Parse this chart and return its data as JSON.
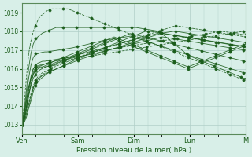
{
  "title": "",
  "xlabel": "Pression niveau de la mer( hPa )",
  "ylabel": "",
  "ylim": [
    1012.5,
    1019.5
  ],
  "yticks": [
    1013,
    1014,
    1015,
    1016,
    1017,
    1018,
    1019
  ],
  "x_day_labels": [
    "Ven",
    "Sam",
    "Dim",
    "Lun",
    "M"
  ],
  "x_day_positions": [
    0,
    24,
    48,
    72,
    96
  ],
  "bg_color": "#d8efe8",
  "grid_color": "#b0cfc8",
  "line_color": "#1a5c1a",
  "total_hours": 96,
  "series": [
    [
      1013.0,
      1013.2,
      1013.5,
      1014.0,
      1014.5,
      1015.0,
      1015.3,
      1015.5,
      1015.6,
      1015.7,
      1015.8,
      1015.9,
      1016.0,
      1016.1,
      1016.2,
      1016.3,
      1016.35,
      1016.4,
      1016.45,
      1016.5,
      1016.55,
      1016.6,
      1016.65,
      1016.7,
      1016.75,
      1016.8,
      1016.82,
      1016.84,
      1016.86,
      1016.88,
      1016.9,
      1016.92,
      1016.94,
      1016.96,
      1016.98,
      1017.0,
      1017.02,
      1017.04,
      1017.06,
      1017.08,
      1017.1,
      1017.12,
      1017.14,
      1017.16,
      1017.18,
      1017.2,
      1017.22,
      1017.24,
      1017.26,
      1017.28,
      1017.3,
      1017.32,
      1017.34,
      1017.36,
      1017.38,
      1017.4,
      1017.42,
      1017.44,
      1017.46,
      1017.48,
      1017.5,
      1017.52,
      1017.54,
      1017.56,
      1017.58,
      1017.6,
      1017.62,
      1017.64,
      1017.66,
      1017.68,
      1017.7,
      1017.72,
      1017.74,
      1017.76,
      1017.78,
      1017.8,
      1017.82,
      1017.84,
      1017.86,
      1017.88,
      1017.9,
      1017.92,
      1017.94,
      1017.96,
      1017.98,
      1018.0,
      1017.98,
      1017.96,
      1017.94,
      1017.92,
      1017.9,
      1017.88,
      1017.86,
      1017.84,
      1017.82,
      1017.8
    ],
    [
      1013.0,
      1013.3,
      1013.7,
      1014.2,
      1014.7,
      1015.1,
      1015.4,
      1015.6,
      1015.7,
      1015.8,
      1015.85,
      1015.9,
      1015.95,
      1016.0,
      1016.1,
      1016.15,
      1016.2,
      1016.25,
      1016.3,
      1016.35,
      1016.4,
      1016.45,
      1016.5,
      1016.55,
      1016.6,
      1016.65,
      1016.7,
      1016.74,
      1016.78,
      1016.82,
      1016.86,
      1016.9,
      1016.94,
      1016.98,
      1017.02,
      1017.06,
      1017.1,
      1017.14,
      1017.18,
      1017.22,
      1017.26,
      1017.3,
      1017.34,
      1017.38,
      1017.42,
      1017.46,
      1017.5,
      1017.54,
      1017.58,
      1017.62,
      1017.66,
      1017.7,
      1017.74,
      1017.78,
      1017.82,
      1017.86,
      1017.9,
      1017.94,
      1017.98,
      1018.02,
      1018.06,
      1018.1,
      1018.14,
      1018.18,
      1018.22,
      1018.26,
      1018.3,
      1018.28,
      1018.26,
      1018.24,
      1018.22,
      1018.2,
      1018.18,
      1018.16,
      1018.14,
      1018.12,
      1018.1,
      1018.08,
      1018.06,
      1018.04,
      1018.02,
      1018.0,
      1017.98,
      1017.96,
      1017.94,
      1017.92,
      1017.9,
      1017.88,
      1017.86,
      1017.84,
      1017.82,
      1017.8,
      1017.78,
      1017.76,
      1017.74,
      1017.72,
      1017.7
    ],
    [
      1013.0,
      1013.1,
      1013.4,
      1013.9,
      1014.3,
      1014.8,
      1015.1,
      1015.3,
      1015.45,
      1015.55,
      1015.65,
      1015.75,
      1015.82,
      1015.88,
      1015.94,
      1016.0,
      1016.05,
      1016.1,
      1016.15,
      1016.2,
      1016.25,
      1016.3,
      1016.35,
      1016.4,
      1016.45,
      1016.5,
      1016.54,
      1016.58,
      1016.62,
      1016.66,
      1016.7,
      1016.74,
      1016.78,
      1016.82,
      1016.86,
      1016.9,
      1016.94,
      1016.98,
      1017.02,
      1017.06,
      1017.1,
      1017.14,
      1017.18,
      1017.22,
      1017.26,
      1017.3,
      1017.34,
      1017.38,
      1017.42,
      1017.46,
      1017.5,
      1017.54,
      1017.58,
      1017.62,
      1017.66,
      1017.7,
      1017.74,
      1017.78,
      1017.82,
      1017.86,
      1017.9,
      1017.92,
      1017.94,
      1017.96,
      1017.98,
      1018.0,
      1018.0,
      1017.98,
      1017.96,
      1017.94,
      1017.92,
      1017.9,
      1017.88,
      1017.86,
      1017.84,
      1017.82,
      1017.8,
      1017.78,
      1017.76,
      1017.74,
      1017.72,
      1017.7,
      1017.68,
      1017.66,
      1017.64,
      1017.62,
      1017.6,
      1017.58,
      1017.56,
      1017.54,
      1017.52,
      1017.5,
      1017.48,
      1017.46,
      1017.44,
      1017.42,
      1017.4
    ],
    [
      1013.0,
      1013.15,
      1013.6,
      1014.1,
      1014.6,
      1015.0,
      1015.25,
      1015.45,
      1015.55,
      1015.65,
      1015.72,
      1015.78,
      1015.85,
      1015.9,
      1015.95,
      1016.0,
      1016.06,
      1016.12,
      1016.18,
      1016.24,
      1016.3,
      1016.36,
      1016.42,
      1016.48,
      1016.54,
      1016.6,
      1016.65,
      1016.7,
      1016.75,
      1016.8,
      1016.85,
      1016.9,
      1016.95,
      1017.0,
      1017.05,
      1017.1,
      1017.15,
      1017.2,
      1017.25,
      1017.3,
      1017.35,
      1017.4,
      1017.45,
      1017.5,
      1017.55,
      1017.6,
      1017.65,
      1017.7,
      1017.75,
      1017.8,
      1017.85,
      1017.9,
      1017.95,
      1018.0,
      1018.0,
      1018.0,
      1017.98,
      1017.96,
      1017.94,
      1017.92,
      1017.9,
      1017.88,
      1017.86,
      1017.84,
      1017.82,
      1017.8,
      1017.78,
      1017.76,
      1017.74,
      1017.72,
      1017.7,
      1017.68,
      1017.66,
      1017.64,
      1017.62,
      1017.6,
      1017.58,
      1017.56,
      1017.54,
      1017.52,
      1017.5,
      1017.48,
      1017.46,
      1017.44,
      1017.42,
      1017.4,
      1017.38,
      1017.36,
      1017.34,
      1017.32,
      1017.3,
      1017.28,
      1017.26,
      1017.24,
      1017.22,
      1017.2,
      1017.18
    ],
    [
      1013.0,
      1013.4,
      1014.0,
      1014.6,
      1015.1,
      1015.5,
      1015.7,
      1015.85,
      1015.95,
      1016.02,
      1016.08,
      1016.12,
      1016.16,
      1016.2,
      1016.24,
      1016.28,
      1016.33,
      1016.38,
      1016.43,
      1016.48,
      1016.53,
      1016.58,
      1016.63,
      1016.68,
      1016.73,
      1016.78,
      1016.83,
      1016.88,
      1016.93,
      1016.98,
      1017.03,
      1017.08,
      1017.13,
      1017.18,
      1017.23,
      1017.28,
      1017.33,
      1017.38,
      1017.43,
      1017.48,
      1017.53,
      1017.58,
      1017.63,
      1017.68,
      1017.73,
      1017.78,
      1017.83,
      1017.88,
      1017.85,
      1017.82,
      1017.79,
      1017.76,
      1017.73,
      1017.7,
      1017.67,
      1017.64,
      1017.61,
      1017.58,
      1017.55,
      1017.52,
      1017.49,
      1017.46,
      1017.43,
      1017.4,
      1017.37,
      1017.34,
      1017.31,
      1017.28,
      1017.25,
      1017.22,
      1017.19,
      1017.16,
      1017.13,
      1017.1,
      1017.07,
      1017.04,
      1017.01,
      1016.98,
      1016.95,
      1016.92,
      1016.89,
      1016.86,
      1016.83,
      1016.8,
      1016.77,
      1016.74,
      1016.71,
      1016.68,
      1016.65,
      1016.62,
      1016.59,
      1016.56,
      1016.53,
      1016.5,
      1016.47,
      1016.44,
      1016.41,
      1016.38
    ],
    [
      1013.0,
      1013.5,
      1014.2,
      1015.0,
      1015.5,
      1015.8,
      1016.0,
      1016.05,
      1016.1,
      1016.1,
      1016.15,
      1016.2,
      1016.2,
      1016.25,
      1016.3,
      1016.35,
      1016.4,
      1016.45,
      1016.5,
      1016.55,
      1016.6,
      1016.65,
      1016.7,
      1016.75,
      1016.8,
      1016.85,
      1016.9,
      1016.95,
      1017.0,
      1017.05,
      1017.1,
      1017.15,
      1017.2,
      1017.25,
      1017.3,
      1017.35,
      1017.4,
      1017.45,
      1017.5,
      1017.55,
      1017.6,
      1017.55,
      1017.5,
      1017.45,
      1017.4,
      1017.35,
      1017.3,
      1017.25,
      1017.2,
      1017.15,
      1017.1,
      1017.05,
      1017.0,
      1016.95,
      1016.9,
      1016.85,
      1016.8,
      1016.75,
      1016.7,
      1016.65,
      1016.6,
      1016.55,
      1016.5,
      1016.45,
      1016.4,
      1016.35,
      1016.3,
      1016.25,
      1016.2,
      1016.15,
      1016.1,
      1016.05,
      1016.0,
      1016.05,
      1016.1,
      1016.15,
      1016.2,
      1016.25,
      1016.3,
      1016.35,
      1016.4,
      1016.45,
      1016.5,
      1016.55,
      1016.6,
      1016.65,
      1016.7,
      1016.75,
      1016.8,
      1016.85,
      1016.9,
      1016.95,
      1017.0,
      1017.05,
      1017.1,
      1017.15,
      1017.2,
      1017.2
    ],
    [
      1013.0,
      1013.6,
      1014.3,
      1015.0,
      1015.6,
      1016.0,
      1016.1,
      1016.15,
      1016.2,
      1016.2,
      1016.25,
      1016.3,
      1016.35,
      1016.35,
      1016.4,
      1016.45,
      1016.5,
      1016.55,
      1016.6,
      1016.65,
      1016.7,
      1016.75,
      1016.8,
      1016.85,
      1016.9,
      1016.95,
      1017.0,
      1017.05,
      1017.1,
      1017.15,
      1017.2,
      1017.25,
      1017.3,
      1017.35,
      1017.4,
      1017.45,
      1017.5,
      1017.55,
      1017.6,
      1017.65,
      1017.7,
      1017.65,
      1017.6,
      1017.55,
      1017.5,
      1017.45,
      1017.4,
      1017.35,
      1017.3,
      1017.25,
      1017.2,
      1017.15,
      1017.1,
      1017.05,
      1017.0,
      1016.95,
      1016.9,
      1016.85,
      1016.8,
      1016.75,
      1016.7,
      1016.65,
      1016.6,
      1016.55,
      1016.5,
      1016.45,
      1016.4,
      1016.35,
      1016.3,
      1016.25,
      1016.2,
      1016.15,
      1016.1,
      1016.15,
      1016.2,
      1016.25,
      1016.3,
      1016.35,
      1016.4,
      1016.45,
      1016.5,
      1016.55,
      1016.6,
      1016.65,
      1016.7,
      1016.75,
      1016.8,
      1016.85,
      1016.9,
      1016.95,
      1017.0,
      1017.05,
      1017.1,
      1017.15,
      1017.2,
      1017.25,
      1017.3,
      1017.3
    ],
    [
      1013.0,
      1013.2,
      1013.8,
      1014.5,
      1015.2,
      1015.7,
      1016.0,
      1016.1,
      1016.15,
      1016.2,
      1016.25,
      1016.3,
      1016.3,
      1016.35,
      1016.4,
      1016.42,
      1016.44,
      1016.46,
      1016.48,
      1016.5,
      1016.52,
      1016.55,
      1016.58,
      1016.6,
      1016.62,
      1016.65,
      1016.68,
      1016.7,
      1016.72,
      1016.75,
      1016.78,
      1016.8,
      1016.83,
      1016.86,
      1016.89,
      1016.92,
      1016.95,
      1016.98,
      1017.01,
      1017.04,
      1017.07,
      1017.1,
      1017.13,
      1017.16,
      1017.19,
      1017.22,
      1017.25,
      1017.28,
      1017.31,
      1017.34,
      1017.37,
      1017.4,
      1017.43,
      1017.46,
      1017.49,
      1017.52,
      1017.55,
      1017.58,
      1017.61,
      1017.64,
      1017.67,
      1017.7,
      1017.68,
      1017.66,
      1017.64,
      1017.62,
      1017.6,
      1017.58,
      1017.56,
      1017.54,
      1017.52,
      1017.5,
      1017.48,
      1017.46,
      1017.44,
      1017.42,
      1017.4,
      1017.38,
      1017.36,
      1017.34,
      1017.32,
      1017.3,
      1017.28,
      1017.26,
      1017.24,
      1017.22,
      1017.2,
      1017.18,
      1017.16,
      1017.14,
      1017.12,
      1017.1,
      1017.08,
      1017.06,
      1017.04,
      1017.02,
      1017.0,
      1017.0
    ],
    [
      1013.0,
      1013.25,
      1013.9,
      1014.8,
      1015.5,
      1016.0,
      1016.2,
      1016.3,
      1016.35,
      1016.4,
      1016.4,
      1016.42,
      1016.44,
      1016.46,
      1016.48,
      1016.5,
      1016.52,
      1016.54,
      1016.56,
      1016.58,
      1016.6,
      1016.63,
      1016.66,
      1016.7,
      1016.73,
      1016.76,
      1016.8,
      1016.83,
      1016.86,
      1016.9,
      1016.93,
      1016.96,
      1017.0,
      1017.03,
      1017.06,
      1017.1,
      1017.13,
      1017.16,
      1017.2,
      1017.23,
      1017.26,
      1017.3,
      1017.33,
      1017.36,
      1017.4,
      1017.43,
      1017.46,
      1017.5,
      1017.53,
      1017.56,
      1017.6,
      1017.63,
      1017.66,
      1017.7,
      1017.73,
      1017.76,
      1017.8,
      1017.83,
      1017.86,
      1017.9,
      1017.9,
      1017.88,
      1017.86,
      1017.84,
      1017.82,
      1017.8,
      1017.78,
      1017.76,
      1017.74,
      1017.72,
      1017.7,
      1017.68,
      1017.66,
      1017.64,
      1017.62,
      1017.6,
      1017.58,
      1017.56,
      1017.54,
      1017.52,
      1017.5,
      1017.48,
      1017.46,
      1017.44,
      1017.42,
      1017.4,
      1017.38,
      1017.36,
      1017.34,
      1017.32,
      1017.3,
      1017.28,
      1017.26,
      1017.24,
      1017.22,
      1017.2,
      1017.18,
      1017.18
    ],
    [
      1013.0,
      1013.5,
      1014.5,
      1015.5,
      1016.2,
      1016.6,
      1016.8,
      1016.8,
      1016.85,
      1016.88,
      1016.9,
      1016.9,
      1016.92,
      1016.94,
      1016.96,
      1016.98,
      1017.0,
      1017.02,
      1017.04,
      1017.06,
      1017.08,
      1017.1,
      1017.12,
      1017.15,
      1017.18,
      1017.2,
      1017.23,
      1017.26,
      1017.29,
      1017.32,
      1017.35,
      1017.38,
      1017.41,
      1017.44,
      1017.47,
      1017.5,
      1017.52,
      1017.54,
      1017.56,
      1017.58,
      1017.6,
      1017.62,
      1017.64,
      1017.66,
      1017.68,
      1017.7,
      1017.72,
      1017.74,
      1017.7,
      1017.66,
      1017.62,
      1017.58,
      1017.54,
      1017.5,
      1017.46,
      1017.42,
      1017.38,
      1017.34,
      1017.3,
      1017.26,
      1017.22,
      1017.18,
      1017.14,
      1017.1,
      1017.06,
      1017.02,
      1016.98,
      1016.94,
      1016.9,
      1016.86,
      1016.82,
      1016.78,
      1016.74,
      1016.7,
      1016.66,
      1016.62,
      1016.58,
      1016.54,
      1016.5,
      1016.46,
      1016.42,
      1016.38,
      1016.34,
      1016.3,
      1016.26,
      1016.22,
      1016.18,
      1016.14,
      1016.1,
      1016.06,
      1016.02,
      1015.98,
      1015.94,
      1015.9,
      1015.86,
      1015.82,
      1015.78,
      1015.78
    ],
    [
      1013.0,
      1013.7,
      1014.8,
      1016.0,
      1016.8,
      1017.3,
      1017.6,
      1017.7,
      1017.8,
      1017.9,
      1017.95,
      1018.0,
      1018.05,
      1018.1,
      1018.15,
      1018.2,
      1018.2,
      1018.2,
      1018.2,
      1018.2,
      1018.2,
      1018.2,
      1018.2,
      1018.2,
      1018.2,
      1018.2,
      1018.2,
      1018.2,
      1018.2,
      1018.2,
      1018.2,
      1018.2,
      1018.2,
      1018.2,
      1018.2,
      1018.2,
      1018.2,
      1018.2,
      1018.2,
      1018.2,
      1018.2,
      1018.2,
      1018.2,
      1018.2,
      1018.2,
      1018.2,
      1018.2,
      1018.2,
      1018.2,
      1018.2,
      1018.2,
      1018.18,
      1018.16,
      1018.14,
      1018.12,
      1018.1,
      1018.08,
      1018.06,
      1018.04,
      1018.02,
      1018.0,
      1017.9,
      1017.8,
      1017.7,
      1017.6,
      1017.5,
      1017.4,
      1017.3,
      1017.2,
      1017.1,
      1017.0,
      1016.9,
      1016.8,
      1016.7,
      1016.65,
      1016.6,
      1016.55,
      1016.5,
      1016.45,
      1016.4,
      1016.35,
      1016.3,
      1016.25,
      1016.2,
      1016.15,
      1016.1,
      1016.05,
      1016.0,
      1015.95,
      1015.9,
      1015.85,
      1015.8,
      1015.75,
      1015.7,
      1015.65,
      1015.6,
      1015.55,
      1015.5,
      1015.5
    ],
    [
      1013.0,
      1014.0,
      1015.5,
      1016.8,
      1017.5,
      1018.0,
      1018.3,
      1018.6,
      1018.8,
      1018.9,
      1019.0,
      1019.1,
      1019.15,
      1019.2,
      1019.2,
      1019.2,
      1019.2,
      1019.2,
      1019.2,
      1019.2,
      1019.2,
      1019.15,
      1019.1,
      1019.05,
      1019.0,
      1018.95,
      1018.9,
      1018.85,
      1018.8,
      1018.75,
      1018.7,
      1018.65,
      1018.6,
      1018.55,
      1018.5,
      1018.45,
      1018.4,
      1018.35,
      1018.3,
      1018.25,
      1018.2,
      1018.15,
      1018.1,
      1018.05,
      1018.0,
      1017.95,
      1017.9,
      1017.85,
      1017.8,
      1017.75,
      1017.7,
      1017.65,
      1017.6,
      1017.55,
      1017.5,
      1017.45,
      1017.4,
      1017.35,
      1017.3,
      1017.25,
      1017.2,
      1017.15,
      1017.1,
      1017.05,
      1017.0,
      1016.95,
      1016.9,
      1016.85,
      1016.8,
      1016.75,
      1016.7,
      1016.65,
      1016.6,
      1016.55,
      1016.5,
      1016.45,
      1016.4,
      1016.35,
      1016.3,
      1016.25,
      1016.2,
      1016.15,
      1016.1,
      1016.05,
      1016.0,
      1015.95,
      1015.9,
      1015.85,
      1015.8,
      1015.75,
      1015.7,
      1015.65,
      1015.6,
      1015.55,
      1015.5,
      1015.45,
      1015.4,
      1015.4
    ],
    [
      1013.0,
      1013.3,
      1013.9,
      1014.7,
      1015.3,
      1015.7,
      1015.9,
      1016.0,
      1016.05,
      1016.08,
      1016.1,
      1016.12,
      1016.14,
      1016.16,
      1016.18,
      1016.2,
      1016.25,
      1016.3,
      1016.35,
      1016.4,
      1016.45,
      1016.5,
      1016.52,
      1016.54,
      1016.56,
      1016.58,
      1016.6,
      1016.62,
      1016.64,
      1016.66,
      1016.68,
      1016.7,
      1016.72,
      1016.74,
      1016.76,
      1016.78,
      1016.8,
      1016.82,
      1016.84,
      1016.86,
      1016.88,
      1016.9,
      1016.92,
      1016.94,
      1016.96,
      1016.98,
      1017.0,
      1017.02,
      1017.04,
      1017.06,
      1017.08,
      1017.1,
      1017.12,
      1017.14,
      1017.16,
      1017.18,
      1017.2,
      1017.22,
      1017.24,
      1017.26,
      1017.28,
      1017.3,
      1017.32,
      1017.34,
      1017.36,
      1017.38,
      1017.4,
      1017.42,
      1017.44,
      1017.46,
      1017.48,
      1017.5,
      1017.52,
      1017.54,
      1017.56,
      1017.58,
      1017.6,
      1017.62,
      1017.64,
      1017.66,
      1017.68,
      1017.7,
      1017.72,
      1017.74,
      1017.76,
      1017.78,
      1017.8,
      1017.82,
      1017.84,
      1017.86,
      1017.88,
      1017.9,
      1017.92,
      1017.94,
      1017.96,
      1017.98,
      1018.0,
      1017.8
    ]
  ],
  "marker_styles": [
    {
      "ls": "--",
      "marker": "D"
    },
    {
      "ls": "--",
      "marker": "D"
    },
    {
      "ls": "-",
      "marker": "D"
    },
    {
      "ls": "-",
      "marker": "D"
    },
    {
      "ls": "-",
      "marker": "D"
    },
    {
      "ls": "-",
      "marker": "D"
    },
    {
      "ls": "-",
      "marker": "D"
    },
    {
      "ls": "-",
      "marker": "D"
    },
    {
      "ls": "-",
      "marker": "D"
    },
    {
      "ls": "-",
      "marker": "D"
    },
    {
      "ls": "-",
      "marker": "D"
    },
    {
      "ls": "--",
      "marker": "D"
    },
    {
      "ls": "--",
      "marker": "D"
    },
    {
      "ls": "-",
      "marker": "D"
    }
  ]
}
